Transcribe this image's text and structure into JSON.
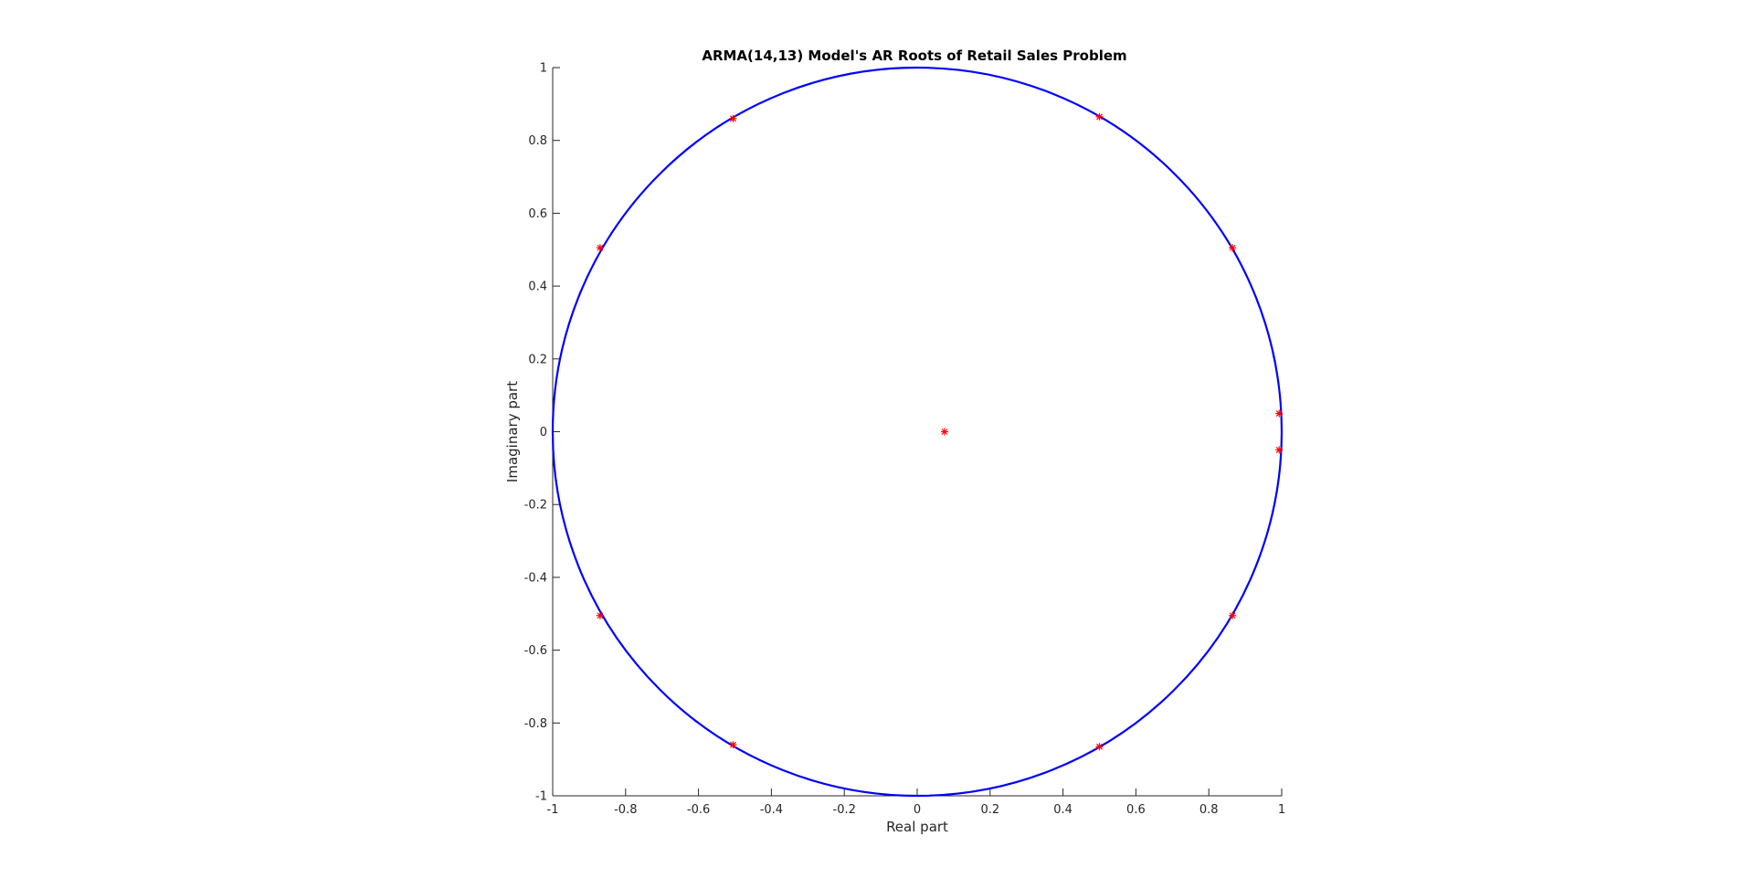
{
  "chart_data": {
    "type": "scatter",
    "title": "ARMA(14,13) Model's AR Roots of Retail Sales Problem",
    "xlabel": "Real part",
    "ylabel": "Imaginary part",
    "xlim": [
      -1,
      1
    ],
    "ylim": [
      -1,
      1
    ],
    "x_ticks": [
      "-1",
      "-0.8",
      "-0.6",
      "-0.4",
      "-0.2",
      "0",
      "0.2",
      "0.4",
      "0.6",
      "0.8",
      "1"
    ],
    "y_ticks": [
      "-1",
      "-0.8",
      "-0.6",
      "-0.4",
      "-0.2",
      "0",
      "0.2",
      "0.4",
      "0.6",
      "0.8",
      "1"
    ],
    "grid": false,
    "unit_circle": {
      "color": "#0000ff"
    },
    "marker": {
      "symbol": "*",
      "color": "#ff0000"
    },
    "roots": [
      {
        "x": -0.505,
        "y": 0.86
      },
      {
        "x": 0.5,
        "y": 0.865
      },
      {
        "x": -0.87,
        "y": 0.505
      },
      {
        "x": 0.865,
        "y": 0.505
      },
      {
        "x": 0.993,
        "y": 0.05
      },
      {
        "x": 0.993,
        "y": -0.05
      },
      {
        "x": 0.075,
        "y": 0.0
      },
      {
        "x": -0.87,
        "y": -0.505
      },
      {
        "x": 0.865,
        "y": -0.505
      },
      {
        "x": -0.505,
        "y": -0.86
      },
      {
        "x": 0.5,
        "y": -0.865
      }
    ]
  }
}
